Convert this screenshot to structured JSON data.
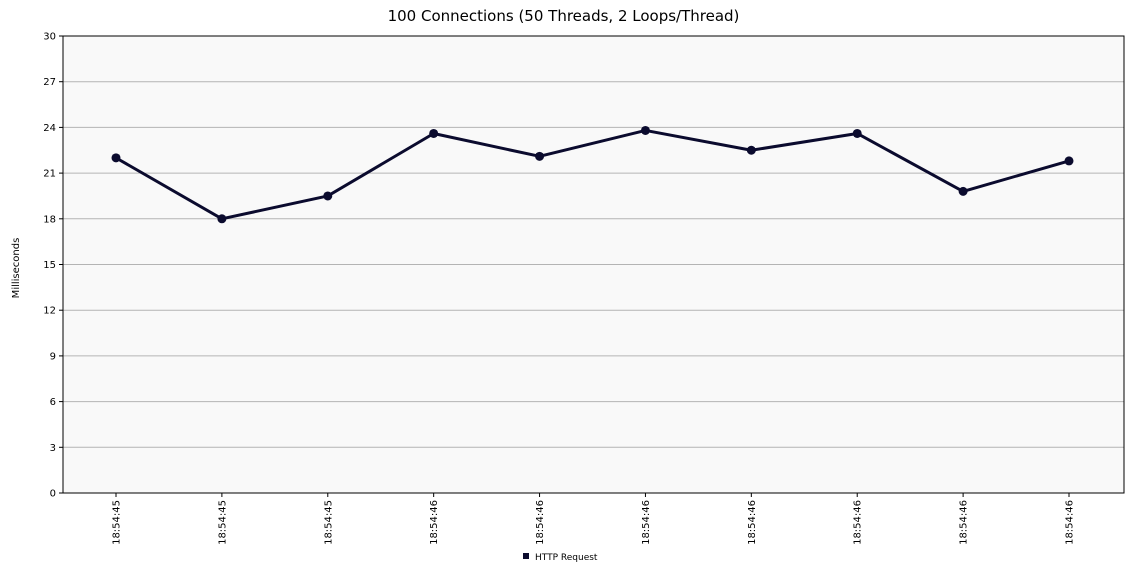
{
  "chart_data": {
    "type": "line",
    "title": "100 Connections (50 Threads, 2 Loops/Thread)",
    "ylabel": "Milliseconds",
    "xlabel": "",
    "ylim": [
      0,
      30
    ],
    "yticks": [
      0,
      3,
      6,
      9,
      12,
      15,
      18,
      21,
      24,
      27,
      30
    ],
    "categories": [
      "18:54:45",
      "18:54:45",
      "18:54:45",
      "18:54:46",
      "18:54:46",
      "18:54:46",
      "18:54:46",
      "18:54:46",
      "18:54:46",
      "18:54:46"
    ],
    "series": [
      {
        "name": "HTTP Request",
        "values": [
          22.0,
          18.0,
          19.5,
          23.6,
          22.1,
          23.8,
          22.5,
          23.6,
          19.8,
          21.8
        ],
        "color": "#0b0b2e"
      }
    ],
    "grid": true,
    "legend_position": "bottom-center",
    "plot_background": "#f9f9f9",
    "grid_color": "#b4b4b4"
  }
}
